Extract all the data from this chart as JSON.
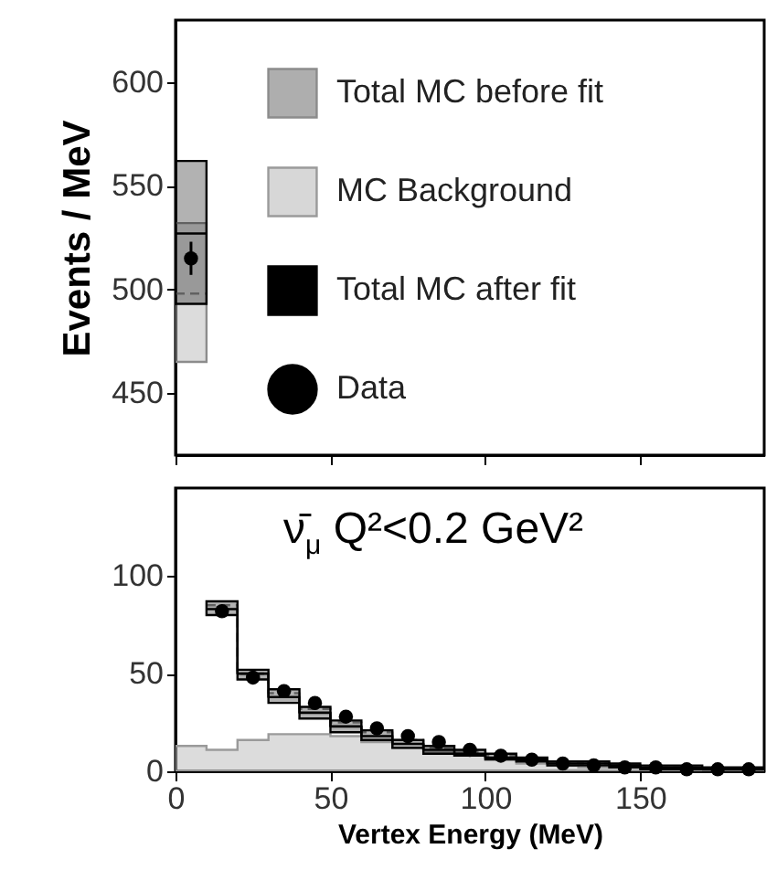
{
  "chart_data": [
    {
      "type": "step",
      "ylabel": "Events / MeV",
      "xlim": [
        0,
        190
      ],
      "xticks": [
        0,
        50,
        100,
        150
      ],
      "ylim": [
        420,
        630
      ],
      "yticks": [
        450,
        500,
        550,
        600
      ],
      "tick_labels": "y",
      "grid": false,
      "series": [
        {
          "color": "#8c8c8c",
          "line_style": "dashed",
          "x": [
            0,
            10
          ],
          "values": [
            498,
            498
          ],
          "lower": [
            465,
            465
          ],
          "upper": [
            532,
            532
          ]
        },
        {
          "color": "#000000",
          "x": [
            0,
            10
          ],
          "values": [
            527,
            527
          ],
          "lower": [
            493,
            493
          ],
          "upper": [
            562,
            562
          ]
        },
        {
          "type": "scatter",
          "color": "#000000",
          "marker": "circle",
          "x": [
            5
          ],
          "values": [
            515
          ],
          "errors": [
            8
          ]
        }
      ]
    },
    {
      "type": "step",
      "xlabel": "Vertex Energy (MeV)",
      "xlim": [
        0,
        190
      ],
      "xticks": [
        0,
        50,
        100,
        150
      ],
      "ylim": [
        0,
        145
      ],
      "yticks": [
        0,
        50,
        100
      ],
      "legend": "top",
      "grid": false,
      "annotations": [
        "ν̄$_{μ}$ Q²<0.2 GeV²"
      ],
      "series": [
        {
          "name": "Total MC before fit",
          "color": "#8c8c8c",
          "line_style": "dashed",
          "x": [
            10,
            20,
            30,
            40,
            50,
            60,
            70,
            80,
            90,
            100,
            110,
            120,
            130,
            140,
            150,
            160,
            170,
            180,
            190
          ],
          "values": [
            85,
            50,
            40,
            32,
            25,
            20,
            16,
            12,
            10,
            8,
            6,
            5,
            4,
            3,
            2,
            2,
            1,
            1,
            1
          ]
        },
        {
          "name": "MC Background",
          "type": "area",
          "color": "#9a9a9a",
          "x": [
            0,
            10,
            20,
            30,
            40,
            50,
            60,
            70,
            80,
            90,
            100,
            110,
            120,
            130,
            140,
            150,
            160,
            170,
            180,
            190
          ],
          "values": [
            13,
            11,
            16,
            19,
            19,
            18,
            15,
            12,
            10,
            8,
            6,
            4,
            3,
            2,
            2,
            1,
            1,
            1,
            1,
            1
          ]
        },
        {
          "name": "Total MC after fit",
          "color": "#000000",
          "x": [
            10,
            20,
            30,
            40,
            50,
            60,
            70,
            80,
            90,
            100,
            110,
            120,
            130,
            140,
            150,
            160,
            170,
            180,
            190
          ],
          "values": [
            83,
            50,
            38,
            30,
            23,
            18,
            14,
            11,
            9,
            7,
            6,
            4,
            4,
            3,
            2,
            2,
            1,
            1,
            1
          ],
          "lower": [
            80,
            47,
            35,
            27,
            20,
            16,
            12,
            9,
            8,
            6,
            5,
            3,
            3,
            2,
            1,
            1,
            1,
            1,
            1
          ],
          "upper": [
            87,
            52,
            42,
            33,
            26,
            21,
            16,
            13,
            11,
            9,
            7,
            5,
            5,
            4,
            3,
            3,
            2,
            2,
            2
          ]
        },
        {
          "name": "Data",
          "type": "scatter",
          "color": "#000000",
          "marker": "circle",
          "x": [
            15,
            25,
            35,
            45,
            55,
            65,
            75,
            85,
            95,
            105,
            115,
            125,
            135,
            145,
            155,
            165,
            175,
            185
          ],
          "values": [
            82,
            48,
            41,
            35,
            28,
            22,
            18,
            15,
            11,
            8,
            6,
            4,
            3,
            2,
            2,
            1,
            1,
            1
          ]
        }
      ]
    }
  ]
}
